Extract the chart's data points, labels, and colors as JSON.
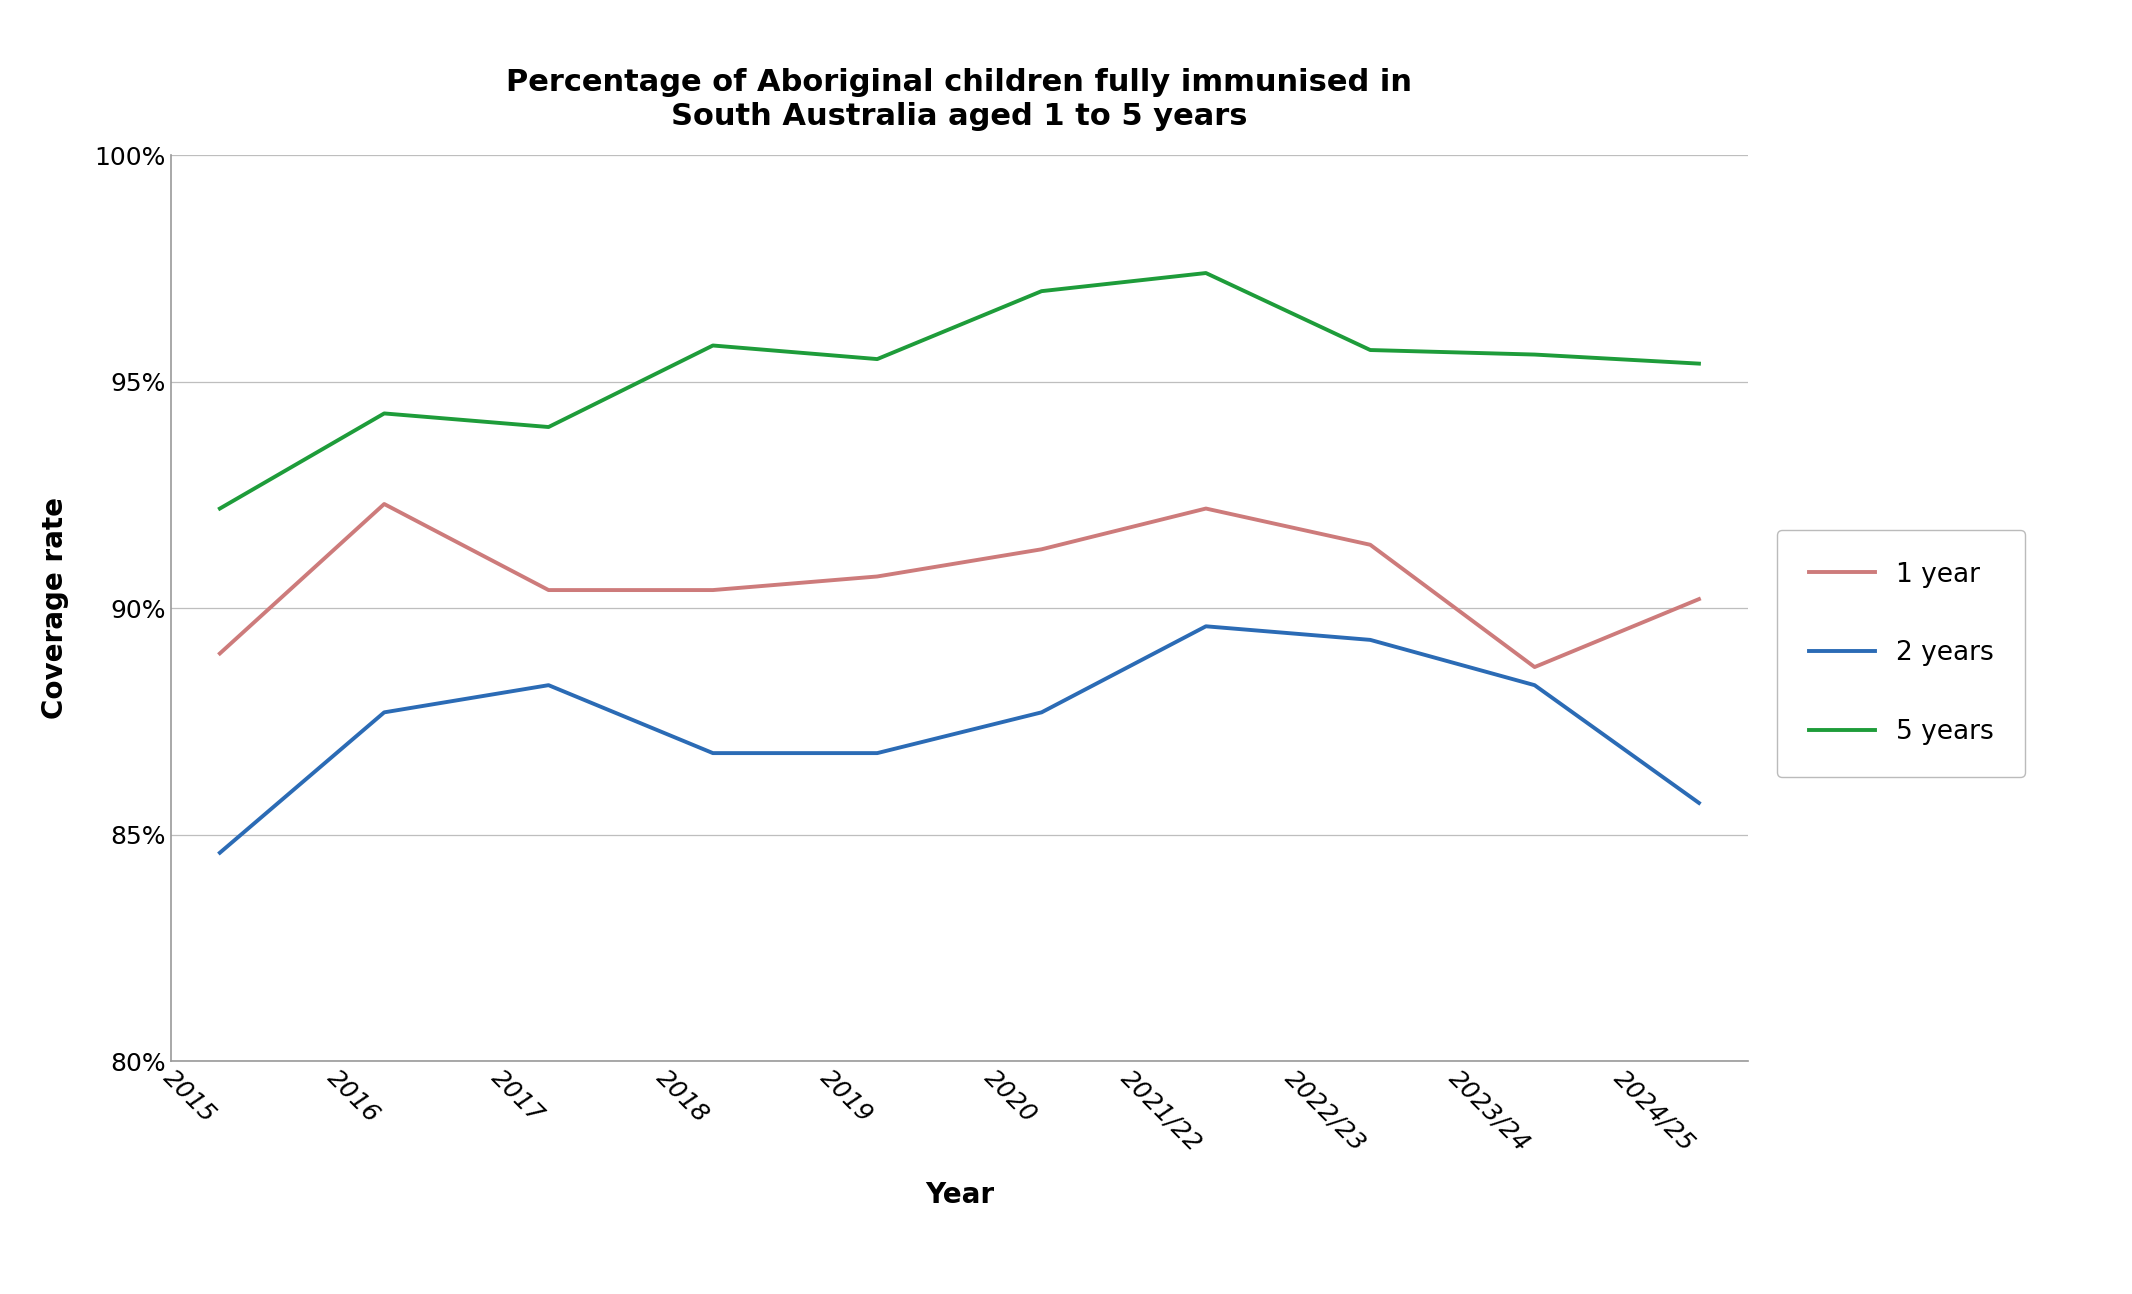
{
  "title": "Percentage of Aboriginal children fully immunised in\nSouth Australia aged 1 to 5 years",
  "xlabel": "Year",
  "ylabel": "Coverage rate",
  "categories": [
    "2015",
    "2016",
    "2017",
    "2018",
    "2019",
    "2020",
    "2021/22",
    "2022/23",
    "2023/24",
    "2024/25"
  ],
  "one_year": [
    89.0,
    92.3,
    90.4,
    90.4,
    90.7,
    91.3,
    92.2,
    91.4,
    88.7,
    90.2
  ],
  "two_years": [
    84.6,
    87.7,
    88.3,
    86.8,
    86.8,
    87.7,
    89.6,
    89.3,
    88.3,
    85.7
  ],
  "five_years": [
    92.2,
    94.3,
    94.0,
    95.8,
    95.5,
    97.0,
    97.4,
    95.7,
    95.6,
    95.4
  ],
  "color_one_year": "#CD7B7B",
  "color_two_years": "#2B6BB5",
  "color_five_years": "#1E9C3A",
  "ylim_min": 80,
  "ylim_max": 100,
  "yticks": [
    80,
    85,
    90,
    95,
    100
  ],
  "ytick_labels": [
    "80%",
    "85%",
    "90%",
    "95%",
    "100%"
  ],
  "legend_labels": [
    "1 year",
    "2 years",
    "5 years"
  ],
  "line_width": 2.8,
  "title_fontsize": 22,
  "axis_label_fontsize": 20,
  "tick_fontsize": 18,
  "legend_fontsize": 19,
  "background_color": "#ffffff",
  "grid_color": "#BEBEBE",
  "spine_color": "#999999"
}
